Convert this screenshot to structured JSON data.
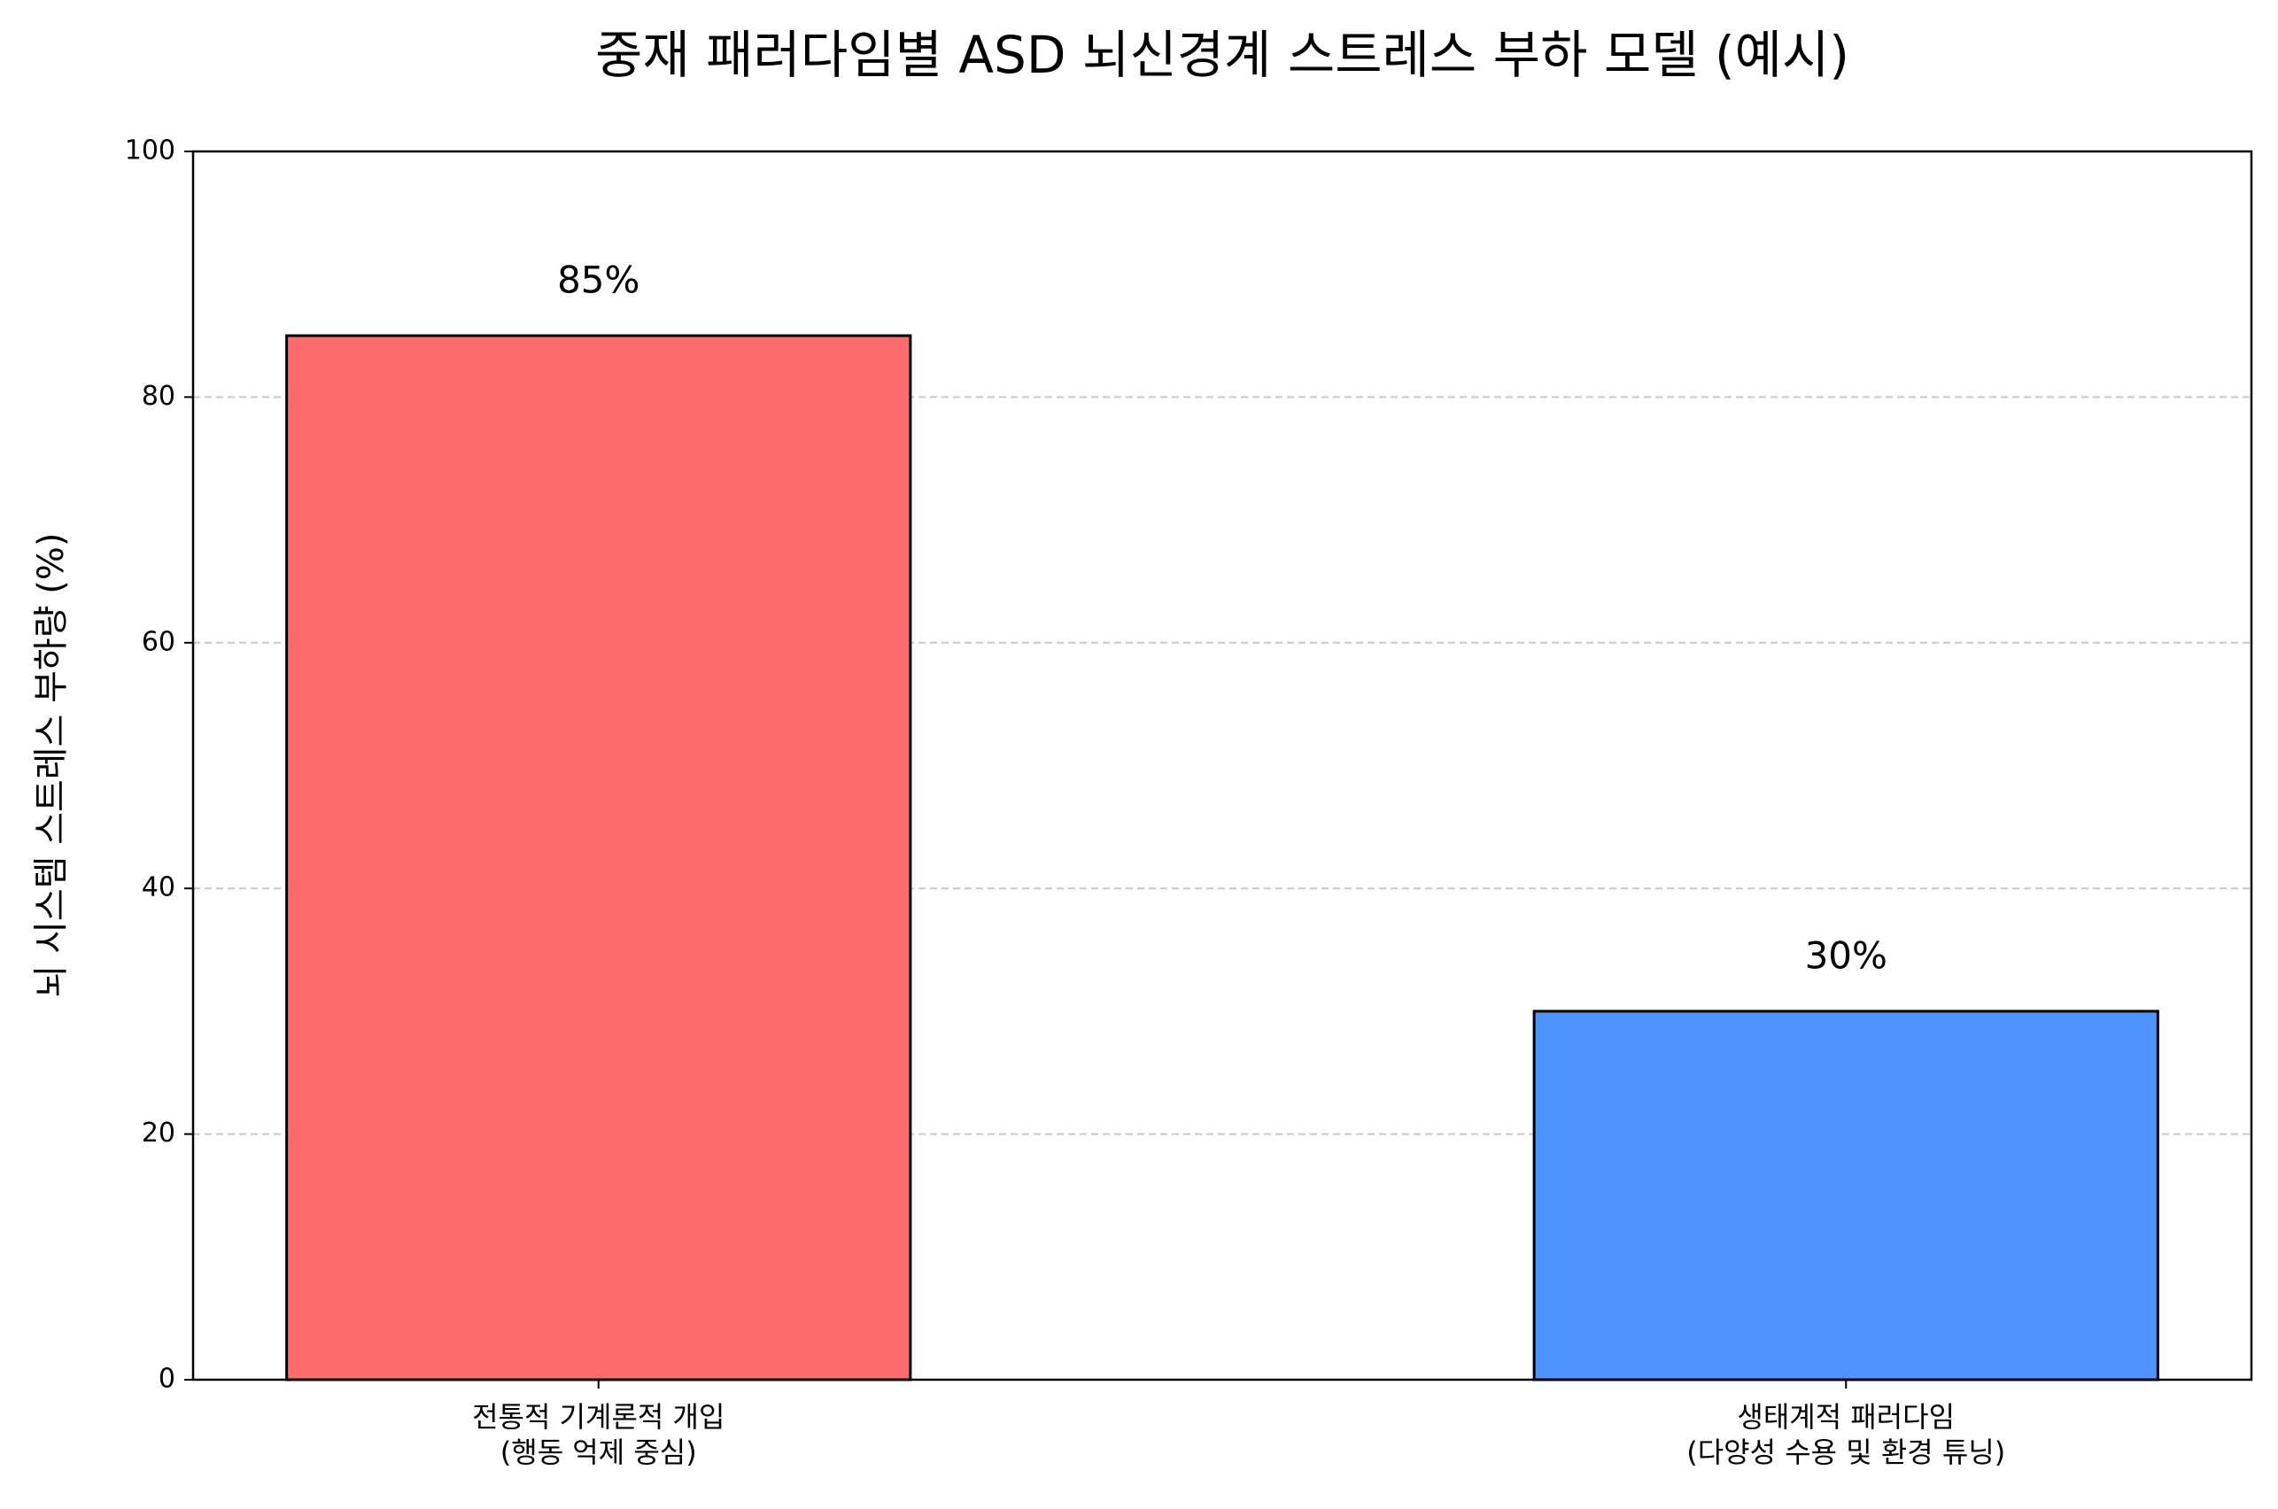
{
  "chart_data": {
    "type": "bar",
    "title": "중재 패러다임별 ASD 뇌신경계 스트레스 부하 모델 (예시)",
    "y_label": "뇌 시스템 스트레스 부하량 (%)",
    "categories": [
      "전통적 기계론적 개입\n(행동 억제 중심)",
      "생태계적 패러다임\n(다양성 수용 및 환경 튜닝)"
    ],
    "values": [
      85,
      30
    ],
    "value_labels": [
      "85%",
      "30%"
    ],
    "colors": [
      "#ff6b6b",
      "#4d94ff"
    ],
    "ylim": [
      0,
      100
    ],
    "yticks": [
      0,
      20,
      40,
      60,
      80,
      100
    ],
    "grid": true
  }
}
